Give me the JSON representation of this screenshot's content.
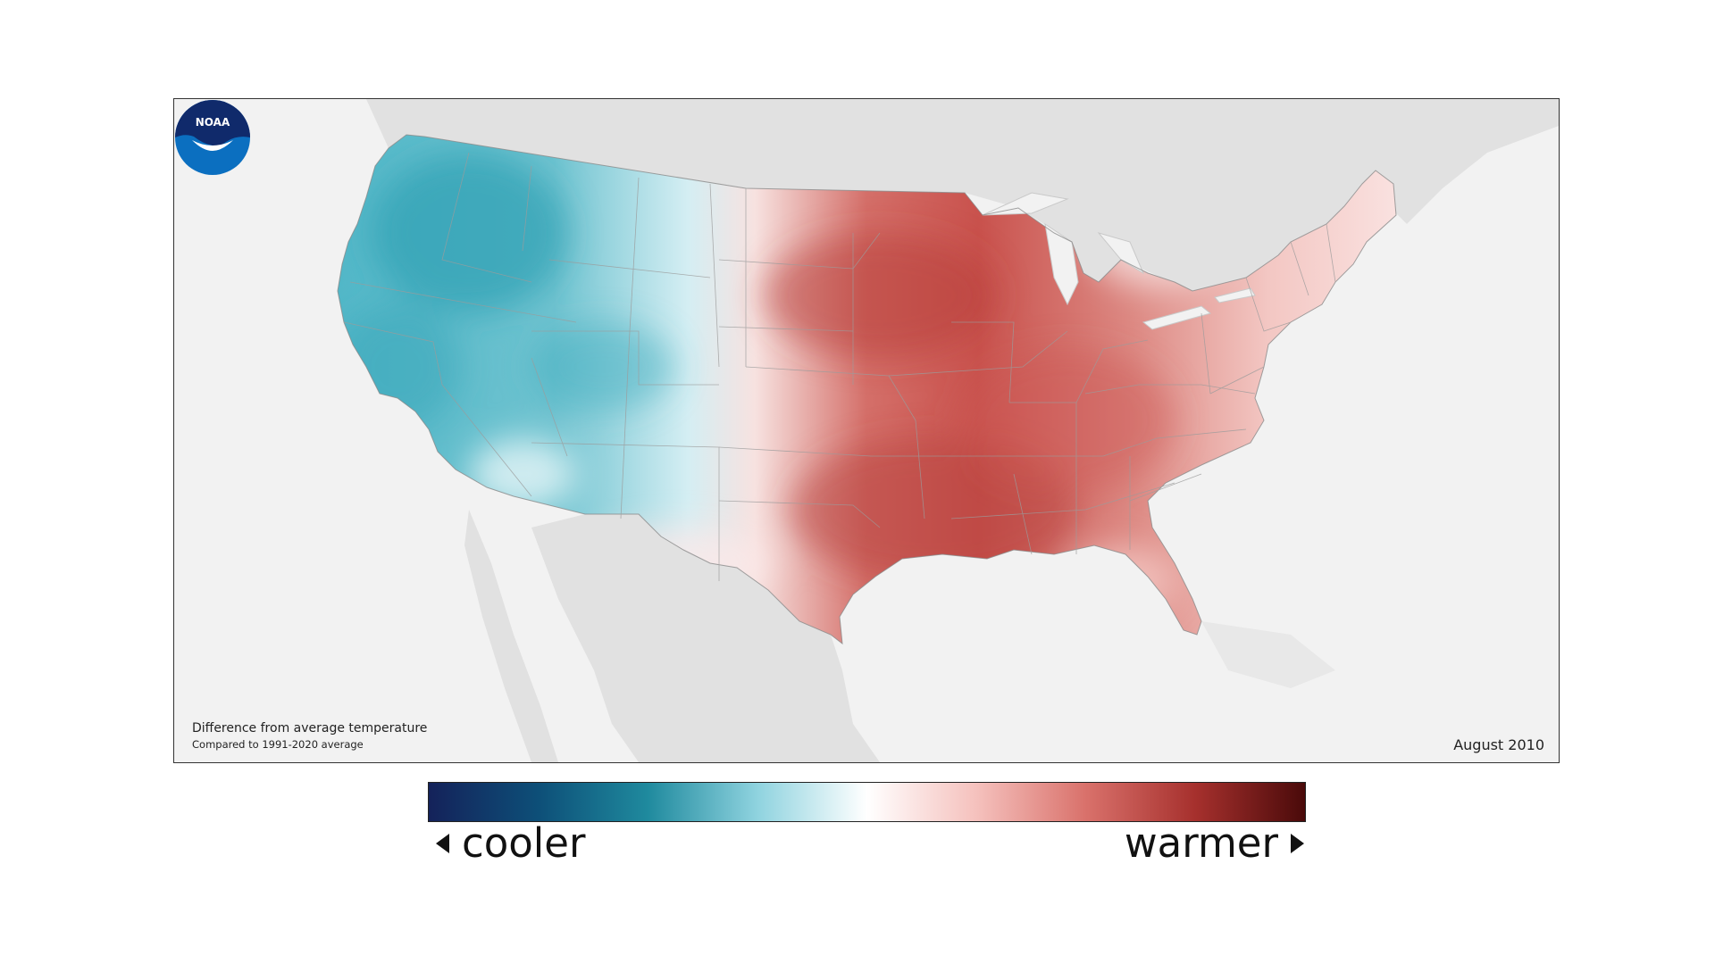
{
  "map": {
    "caption_line1": "Difference from average temperature",
    "caption_line2": "Compared to 1991-2020 average",
    "date": "August 2010",
    "logo_text": "NOAA"
  },
  "legend": {
    "left_label": "cooler",
    "right_label": "warmer",
    "scale_colors": [
      "#14225a",
      "#0d4f78",
      "#1f8a9e",
      "#8fd3df",
      "#ffffff",
      "#f5c1bd",
      "#d9716b",
      "#a6302d",
      "#4a0a0a"
    ]
  },
  "colors": {
    "frame_background": "#f2f2f2",
    "non_us_land": "#e1e1e1",
    "cool_anomaly": "#4fb3c4",
    "warm_anomaly": "#c8504c",
    "noaa_blue": "#0b6fc0",
    "noaa_navy": "#102a6b"
  }
}
